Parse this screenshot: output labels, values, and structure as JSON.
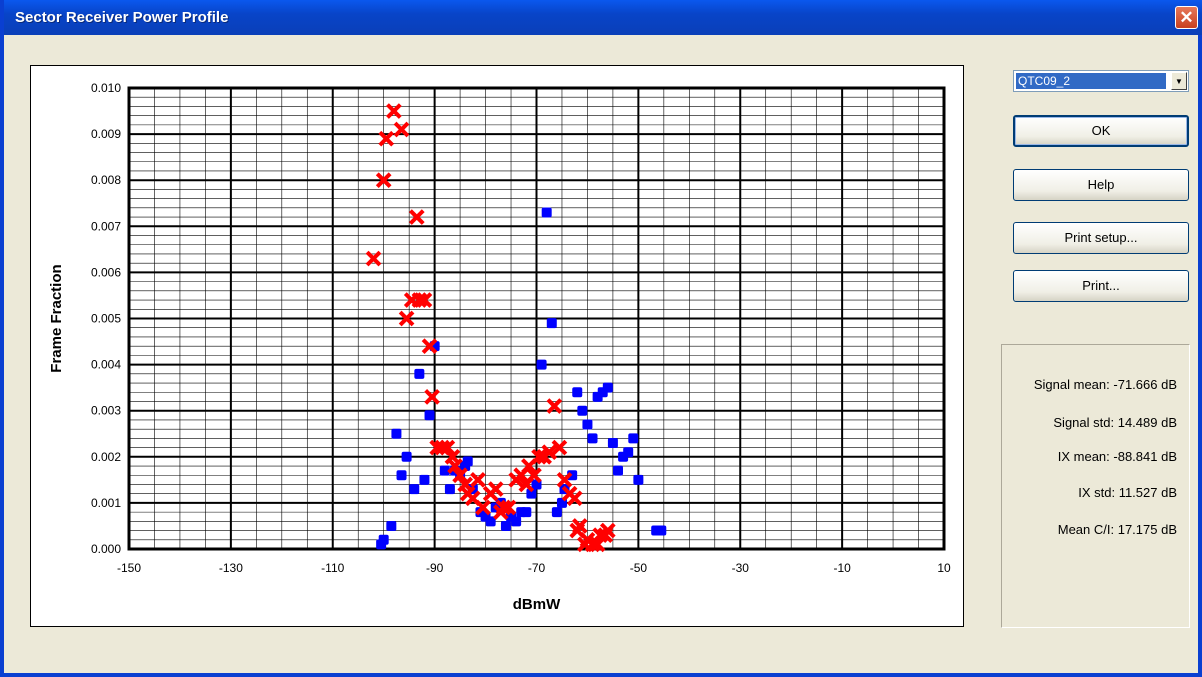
{
  "window": {
    "title": "Sector Receiver Power Profile",
    "close_label": "✕"
  },
  "controls": {
    "sector_select": "QTC09_2",
    "ok_label": "OK",
    "help_label": "Help",
    "print_setup_label": "Print setup...",
    "print_label": "Print..."
  },
  "stats": [
    {
      "label": "Signal mean:",
      "value": "-71.666 dB"
    },
    {
      "label": "Signal std:",
      "value": "14.489 dB"
    },
    {
      "label": "IX mean:",
      "value": "-88.841 dB"
    },
    {
      "label": "IX std:",
      "value": "11.527 dB"
    },
    {
      "label": "Mean C/I:",
      "value": "17.175 dB"
    }
  ],
  "chart_data": {
    "type": "scatter",
    "xlabel": "dBmW",
    "ylabel": "Frame Fraction",
    "xlim": [
      -150,
      10
    ],
    "ylim": [
      0,
      0.01
    ],
    "x_ticks": [
      "-150",
      "-130",
      "-110",
      "-90",
      "-70",
      "-50",
      "-30",
      "-10",
      "10"
    ],
    "y_ticks": [
      "0.000",
      "0.001",
      "0.002",
      "0.003",
      "0.004",
      "0.005",
      "0.006",
      "0.007",
      "0.008",
      "0.009",
      "0.010"
    ],
    "grid": true,
    "series": [
      {
        "color": "#0000ff",
        "marker": "square",
        "points": [
          [
            -100.5,
            0.0001
          ],
          [
            -100,
            0.0002
          ],
          [
            -98.5,
            0.0005
          ],
          [
            -97.5,
            0.0025
          ],
          [
            -96.5,
            0.0016
          ],
          [
            -95.5,
            0.002
          ],
          [
            -94,
            0.0013
          ],
          [
            -93,
            0.0038
          ],
          [
            -92,
            0.0015
          ],
          [
            -91,
            0.0029
          ],
          [
            -90,
            0.0044
          ],
          [
            -88,
            0.0017
          ],
          [
            -87,
            0.0013
          ],
          [
            -86,
            0.0017
          ],
          [
            -85,
            0.0016
          ],
          [
            -84,
            0.0018
          ],
          [
            -83.5,
            0.0019
          ],
          [
            -82.5,
            0.0013
          ],
          [
            -81,
            0.0008
          ],
          [
            -80,
            0.0007
          ],
          [
            -79,
            0.0006
          ],
          [
            -78,
            0.0009
          ],
          [
            -77,
            0.001
          ],
          [
            -76,
            0.0005
          ],
          [
            -75,
            0.0007
          ],
          [
            -74,
            0.0006
          ],
          [
            -73,
            0.0008
          ],
          [
            -72,
            0.0008
          ],
          [
            -71,
            0.0012
          ],
          [
            -70,
            0.0014
          ],
          [
            -69,
            0.004
          ],
          [
            -68,
            0.0073
          ],
          [
            -67,
            0.0049
          ],
          [
            -66,
            0.0008
          ],
          [
            -65,
            0.001
          ],
          [
            -64.5,
            0.0013
          ],
          [
            -63,
            0.0016
          ],
          [
            -62,
            0.0034
          ],
          [
            -61,
            0.003
          ],
          [
            -60,
            0.0027
          ],
          [
            -59,
            0.0024
          ],
          [
            -58,
            0.0033
          ],
          [
            -57,
            0.0034
          ],
          [
            -56,
            0.0035
          ],
          [
            -55,
            0.0023
          ],
          [
            -54,
            0.0017
          ],
          [
            -53,
            0.002
          ],
          [
            -52,
            0.0021
          ],
          [
            -51,
            0.0024
          ],
          [
            -50,
            0.0015
          ],
          [
            -46.5,
            0.0004
          ],
          [
            -45.5,
            0.0004
          ]
        ]
      },
      {
        "color": "#ff0000",
        "marker": "x",
        "points": [
          [
            -102,
            0.0063
          ],
          [
            -100,
            0.008
          ],
          [
            -99.5,
            0.0089
          ],
          [
            -98,
            0.0095
          ],
          [
            -96.5,
            0.0091
          ],
          [
            -95.5,
            0.005
          ],
          [
            -94.5,
            0.0054
          ],
          [
            -93.5,
            0.0072
          ],
          [
            -93,
            0.0054
          ],
          [
            -92,
            0.0054
          ],
          [
            -91,
            0.0044
          ],
          [
            -90.5,
            0.0033
          ],
          [
            -89.5,
            0.0022
          ],
          [
            -88.5,
            0.0022
          ],
          [
            -87.5,
            0.0022
          ],
          [
            -86.5,
            0.002
          ],
          [
            -86,
            0.0018
          ],
          [
            -85,
            0.0016
          ],
          [
            -84,
            0.0014
          ],
          [
            -83.5,
            0.0012
          ],
          [
            -82.5,
            0.0011
          ],
          [
            -81.5,
            0.0015
          ],
          [
            -80.5,
            0.0009
          ],
          [
            -79,
            0.0012
          ],
          [
            -78,
            0.0013
          ],
          [
            -77,
            0.0008
          ],
          [
            -76.5,
            0.0009
          ],
          [
            -75.5,
            0.0009
          ],
          [
            -74,
            0.0015
          ],
          [
            -73,
            0.0016
          ],
          [
            -72,
            0.0014
          ],
          [
            -71.5,
            0.0018
          ],
          [
            -70.5,
            0.0016
          ],
          [
            -69.5,
            0.002
          ],
          [
            -68.5,
            0.002
          ],
          [
            -67.5,
            0.0021
          ],
          [
            -66.5,
            0.0031
          ],
          [
            -65.5,
            0.0022
          ],
          [
            -64.5,
            0.0015
          ],
          [
            -63.5,
            0.0012
          ],
          [
            -62.5,
            0.0011
          ],
          [
            -62,
            0.0004
          ],
          [
            -61.5,
            0.0005
          ],
          [
            -60.5,
            0.0001
          ],
          [
            -60,
            0.0002
          ],
          [
            -59,
            0.0001
          ],
          [
            -58,
            0.0001
          ],
          [
            -57.5,
            0.0003
          ],
          [
            -56.5,
            0.0003
          ],
          [
            -56,
            0.0004
          ]
        ]
      }
    ]
  }
}
